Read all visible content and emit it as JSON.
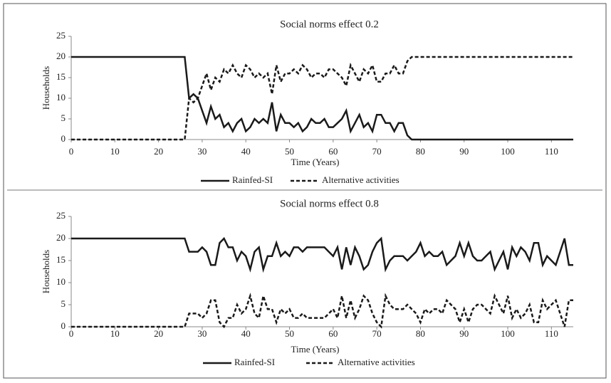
{
  "chart_data": [
    {
      "type": "line",
      "title": "Social norms effect 0.2",
      "xlabel": "Time (Years)",
      "ylabel": "Households",
      "x": [
        0,
        1,
        2,
        3,
        4,
        5,
        6,
        7,
        8,
        9,
        10,
        11,
        12,
        13,
        14,
        15,
        16,
        17,
        18,
        19,
        20,
        21,
        22,
        23,
        24,
        25,
        26,
        27,
        28,
        29,
        30,
        31,
        32,
        33,
        34,
        35,
        36,
        37,
        38,
        39,
        40,
        41,
        42,
        43,
        44,
        45,
        46,
        47,
        48,
        49,
        50,
        51,
        52,
        53,
        54,
        55,
        56,
        57,
        58,
        59,
        60,
        61,
        62,
        63,
        64,
        65,
        66,
        67,
        68,
        69,
        70,
        71,
        72,
        73,
        74,
        75,
        76,
        77,
        78,
        79,
        80,
        81,
        82,
        83,
        84,
        85,
        86,
        87,
        88,
        89,
        90,
        91,
        92,
        93,
        94,
        95,
        96,
        97,
        98,
        99,
        100,
        101,
        102,
        103,
        104,
        105,
        106,
        107,
        108,
        109,
        110,
        111,
        112,
        113,
        114,
        115
      ],
      "series": [
        {
          "name": "Rainfed-SI",
          "color": "#1a1a1a",
          "line_style": "solid",
          "values": [
            20,
            20,
            20,
            20,
            20,
            20,
            20,
            20,
            20,
            20,
            20,
            20,
            20,
            20,
            20,
            20,
            20,
            20,
            20,
            20,
            20,
            20,
            20,
            20,
            20,
            20,
            20,
            10,
            11,
            10,
            7,
            4,
            8,
            5,
            6,
            3,
            4,
            2,
            4,
            5,
            2,
            3,
            5,
            4,
            5,
            4,
            9,
            2,
            6,
            4,
            4,
            3,
            4,
            2,
            3,
            5,
            4,
            4,
            5,
            3,
            3,
            4,
            5,
            7,
            2,
            4,
            6,
            3,
            4,
            2,
            6,
            6,
            4,
            4,
            2,
            4,
            4,
            1,
            0,
            0,
            0,
            0,
            0,
            0,
            0,
            0,
            0,
            0,
            0,
            0,
            0,
            0,
            0,
            0,
            0,
            0,
            0,
            0,
            0,
            0,
            0,
            0,
            0,
            0,
            0,
            0,
            0,
            0,
            0,
            0,
            0,
            0,
            0,
            0,
            0,
            0
          ]
        },
        {
          "name": "Alternative activities",
          "color": "#1a1a1a",
          "line_style": "dashed",
          "values": [
            0,
            0,
            0,
            0,
            0,
            0,
            0,
            0,
            0,
            0,
            0,
            0,
            0,
            0,
            0,
            0,
            0,
            0,
            0,
            0,
            0,
            0,
            0,
            0,
            0,
            0,
            0,
            10,
            9,
            10,
            13,
            16,
            12,
            15,
            14,
            17,
            16,
            18,
            16,
            15,
            18,
            17,
            15,
            16,
            15,
            16,
            11,
            18,
            14,
            16,
            16,
            17,
            16,
            18,
            17,
            15,
            16,
            16,
            15,
            17,
            17,
            16,
            15,
            13,
            18,
            16,
            14,
            17,
            16,
            18,
            14,
            14,
            16,
            16,
            18,
            16,
            16,
            19,
            20,
            20,
            20,
            20,
            20,
            20,
            20,
            20,
            20,
            20,
            20,
            20,
            20,
            20,
            20,
            20,
            20,
            20,
            20,
            20,
            20,
            20,
            20,
            20,
            20,
            20,
            20,
            20,
            20,
            20,
            20,
            20,
            20,
            20,
            20,
            20,
            20,
            20
          ]
        }
      ],
      "xlim": [
        0,
        115
      ],
      "xticks": [
        0,
        10,
        20,
        30,
        40,
        50,
        60,
        70,
        80,
        90,
        100,
        110
      ],
      "ylim": [
        0,
        25
      ],
      "yticks": [
        0,
        5,
        10,
        15,
        20,
        25
      ],
      "grid": false,
      "legend": "bottom"
    },
    {
      "type": "line",
      "title": "Social norms effect 0.8",
      "xlabel": "Time (Years)",
      "ylabel": "Households",
      "x": [
        0,
        1,
        2,
        3,
        4,
        5,
        6,
        7,
        8,
        9,
        10,
        11,
        12,
        13,
        14,
        15,
        16,
        17,
        18,
        19,
        20,
        21,
        22,
        23,
        24,
        25,
        26,
        27,
        28,
        29,
        30,
        31,
        32,
        33,
        34,
        35,
        36,
        37,
        38,
        39,
        40,
        41,
        42,
        43,
        44,
        45,
        46,
        47,
        48,
        49,
        50,
        51,
        52,
        53,
        54,
        55,
        56,
        57,
        58,
        59,
        60,
        61,
        62,
        63,
        64,
        65,
        66,
        67,
        68,
        69,
        70,
        71,
        72,
        73,
        74,
        75,
        76,
        77,
        78,
        79,
        80,
        81,
        82,
        83,
        84,
        85,
        86,
        87,
        88,
        89,
        90,
        91,
        92,
        93,
        94,
        95,
        96,
        97,
        98,
        99,
        100,
        101,
        102,
        103,
        104,
        105,
        106,
        107,
        108,
        109,
        110,
        111,
        112,
        113,
        114,
        115
      ],
      "series": [
        {
          "name": "Rainfed-SI",
          "color": "#1a1a1a",
          "line_style": "solid",
          "values": [
            20,
            20,
            20,
            20,
            20,
            20,
            20,
            20,
            20,
            20,
            20,
            20,
            20,
            20,
            20,
            20,
            20,
            20,
            20,
            20,
            20,
            20,
            20,
            20,
            20,
            20,
            20,
            17,
            17,
            17,
            18,
            17,
            14,
            14,
            19,
            20,
            18,
            18,
            15,
            17,
            16,
            13,
            17,
            18,
            13,
            16,
            16,
            19,
            16,
            17,
            16,
            18,
            18,
            17,
            18,
            18,
            18,
            18,
            18,
            17,
            16,
            18,
            13,
            18,
            14,
            18,
            16,
            13,
            14,
            17,
            19,
            20,
            13,
            15,
            16,
            16,
            16,
            15,
            16,
            17,
            19,
            16,
            17,
            16,
            16,
            17,
            14,
            15,
            16,
            19,
            16,
            19,
            16,
            15,
            15,
            16,
            17,
            13,
            15,
            17,
            13,
            18,
            16,
            18,
            17,
            15,
            19,
            19,
            14,
            16,
            15,
            14,
            17,
            20,
            14,
            14
          ]
        },
        {
          "name": "Alternative activities",
          "color": "#1a1a1a",
          "line_style": "dashed",
          "values": [
            0,
            0,
            0,
            0,
            0,
            0,
            0,
            0,
            0,
            0,
            0,
            0,
            0,
            0,
            0,
            0,
            0,
            0,
            0,
            0,
            0,
            0,
            0,
            0,
            0,
            0,
            0,
            3,
            3,
            3,
            2,
            3,
            6,
            6,
            1,
            0,
            2,
            2,
            5,
            3,
            4,
            7,
            3,
            2,
            7,
            4,
            4,
            1,
            4,
            3,
            4,
            2,
            2,
            3,
            2,
            2,
            2,
            2,
            2,
            3,
            4,
            2,
            7,
            2,
            6,
            2,
            4,
            7,
            6,
            3,
            1,
            0,
            7,
            5,
            4,
            4,
            4,
            5,
            4,
            3,
            1,
            4,
            3,
            4,
            4,
            3,
            6,
            5,
            4,
            1,
            4,
            1,
            4,
            5,
            5,
            4,
            3,
            7,
            5,
            3,
            7,
            2,
            4,
            2,
            3,
            5,
            1,
            1,
            6,
            4,
            5,
            6,
            3,
            0,
            6,
            6
          ]
        }
      ],
      "xlim": [
        0,
        115
      ],
      "xticks": [
        0,
        10,
        20,
        30,
        40,
        50,
        60,
        70,
        80,
        90,
        100,
        110
      ],
      "ylim": [
        0,
        25
      ],
      "yticks": [
        0,
        5,
        10,
        15,
        20,
        25
      ],
      "grid": false,
      "legend": "bottom"
    }
  ]
}
